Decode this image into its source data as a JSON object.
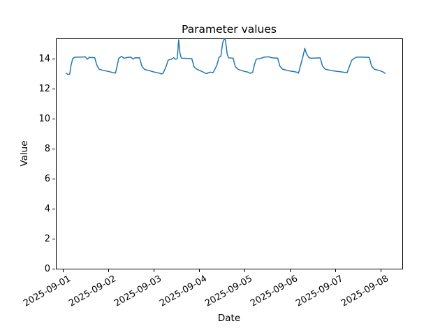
{
  "chart_data": {
    "type": "line",
    "title": "Parameter values",
    "xlabel": "Date",
    "ylabel": "Value",
    "legend": "none",
    "grid": false,
    "background_color": "#ffffff",
    "spine_color": "#000000",
    "line_color": "#1f77b4",
    "line_width": 1.5,
    "x_unit_note": "x expressed as days since 2025-09-01 00:00",
    "xlim_days": [
      -0.154,
      7.477
    ],
    "ylim": [
      0,
      15.35
    ],
    "x_tick_rotation_deg": 30,
    "x_ticks": [
      {
        "day": 0,
        "label": "2025-09-01"
      },
      {
        "day": 1,
        "label": "2025-09-02"
      },
      {
        "day": 2,
        "label": "2025-09-03"
      },
      {
        "day": 3,
        "label": "2025-09-04"
      },
      {
        "day": 4,
        "label": "2025-09-05"
      },
      {
        "day": 5,
        "label": "2025-09-06"
      },
      {
        "day": 6,
        "label": "2025-09-07"
      },
      {
        "day": 7,
        "label": "2025-09-08"
      }
    ],
    "y_ticks": [
      0,
      2,
      4,
      6,
      8,
      10,
      12,
      14
    ],
    "series": [
      {
        "name": "Parameter values",
        "points": [
          [
            0.08,
            13.02
          ],
          [
            0.11,
            12.95
          ],
          [
            0.15,
            12.97
          ],
          [
            0.18,
            13.55
          ],
          [
            0.22,
            14.03
          ],
          [
            0.27,
            14.1
          ],
          [
            0.4,
            14.1
          ],
          [
            0.49,
            14.12
          ],
          [
            0.54,
            13.96
          ],
          [
            0.58,
            14.08
          ],
          [
            0.7,
            14.07
          ],
          [
            0.75,
            13.55
          ],
          [
            0.8,
            13.3
          ],
          [
            0.88,
            13.22
          ],
          [
            1.0,
            13.15
          ],
          [
            1.1,
            13.07
          ],
          [
            1.16,
            13.04
          ],
          [
            1.19,
            13.45
          ],
          [
            1.23,
            14.02
          ],
          [
            1.29,
            14.15
          ],
          [
            1.35,
            14.03
          ],
          [
            1.42,
            14.08
          ],
          [
            1.5,
            14.1
          ],
          [
            1.55,
            13.97
          ],
          [
            1.59,
            14.06
          ],
          [
            1.69,
            14.05
          ],
          [
            1.74,
            13.5
          ],
          [
            1.8,
            13.28
          ],
          [
            1.9,
            13.2
          ],
          [
            2.02,
            13.1
          ],
          [
            2.12,
            13.04
          ],
          [
            2.17,
            12.98
          ],
          [
            2.21,
            13.04
          ],
          [
            2.27,
            13.45
          ],
          [
            2.32,
            13.9
          ],
          [
            2.39,
            13.97
          ],
          [
            2.44,
            14.06
          ],
          [
            2.48,
            13.96
          ],
          [
            2.52,
            14.0
          ],
          [
            2.55,
            15.25
          ],
          [
            2.58,
            14.35
          ],
          [
            2.61,
            14.03
          ],
          [
            2.72,
            14.02
          ],
          [
            2.84,
            14.0
          ],
          [
            2.89,
            13.45
          ],
          [
            2.95,
            13.3
          ],
          [
            3.06,
            13.15
          ],
          [
            3.16,
            13.0
          ],
          [
            3.24,
            13.1
          ],
          [
            3.31,
            13.07
          ],
          [
            3.39,
            13.55
          ],
          [
            3.44,
            14.1
          ],
          [
            3.48,
            14.15
          ],
          [
            3.52,
            15.05
          ],
          [
            3.55,
            15.3
          ],
          [
            3.58,
            15.25
          ],
          [
            3.62,
            14.3
          ],
          [
            3.65,
            14.05
          ],
          [
            3.75,
            14.03
          ],
          [
            3.8,
            13.45
          ],
          [
            3.87,
            13.27
          ],
          [
            4.0,
            13.15
          ],
          [
            4.08,
            13.1
          ],
          [
            4.13,
            13.02
          ],
          [
            4.18,
            13.08
          ],
          [
            4.22,
            13.6
          ],
          [
            4.26,
            13.97
          ],
          [
            4.34,
            14.0
          ],
          [
            4.43,
            14.1
          ],
          [
            4.53,
            14.12
          ],
          [
            4.61,
            14.05
          ],
          [
            4.73,
            14.04
          ],
          [
            4.78,
            13.5
          ],
          [
            4.84,
            13.3
          ],
          [
            4.96,
            13.2
          ],
          [
            5.06,
            13.15
          ],
          [
            5.14,
            13.11
          ],
          [
            5.19,
            13.03
          ],
          [
            5.25,
            13.7
          ],
          [
            5.29,
            14.15
          ],
          [
            5.33,
            14.68
          ],
          [
            5.37,
            14.3
          ],
          [
            5.42,
            14.07
          ],
          [
            5.46,
            14.03
          ],
          [
            5.56,
            14.04
          ],
          [
            5.67,
            14.05
          ],
          [
            5.72,
            13.5
          ],
          [
            5.78,
            13.3
          ],
          [
            5.92,
            13.2
          ],
          [
            6.05,
            13.15
          ],
          [
            6.16,
            13.11
          ],
          [
            6.26,
            13.06
          ],
          [
            6.32,
            13.55
          ],
          [
            6.36,
            13.88
          ],
          [
            6.41,
            14.0
          ],
          [
            6.47,
            14.1
          ],
          [
            6.61,
            14.1
          ],
          [
            6.75,
            14.08
          ],
          [
            6.8,
            13.5
          ],
          [
            6.86,
            13.3
          ],
          [
            6.98,
            13.2
          ],
          [
            7.04,
            13.13
          ],
          [
            7.1,
            13.02
          ]
        ]
      }
    ]
  }
}
